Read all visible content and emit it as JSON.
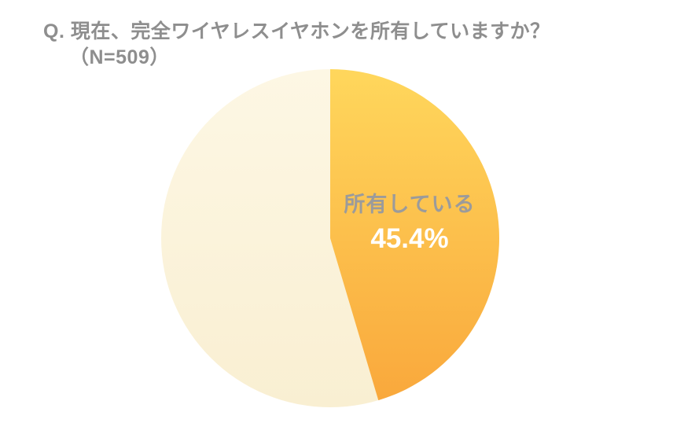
{
  "title": {
    "line1": "Q. 現在、完全ワイヤレスイヤホンを所有していますか？",
    "line2": "（N=509）"
  },
  "chart_data": {
    "type": "pie",
    "title": "Q. 現在、完全ワイヤレスイヤホンを所有していますか？（N=509）",
    "n": 509,
    "start_angle_deg": 0,
    "direction": "clockwise",
    "slices": [
      {
        "label": "所有している",
        "value": 45.4,
        "value_label": "45.4%",
        "color_top": "#ffd75c",
        "color_bottom": "#f9a83c",
        "label_color": "#9b9b9b",
        "value_color": "#ffffff"
      },
      {
        "label": "",
        "value": 54.6,
        "color_top": "#fdf7e4",
        "color_bottom": "#f9efd2"
      }
    ],
    "legend_position": "none",
    "grid": false
  },
  "colors": {
    "background": "#ffffff",
    "title_text": "#8e8e8e"
  }
}
